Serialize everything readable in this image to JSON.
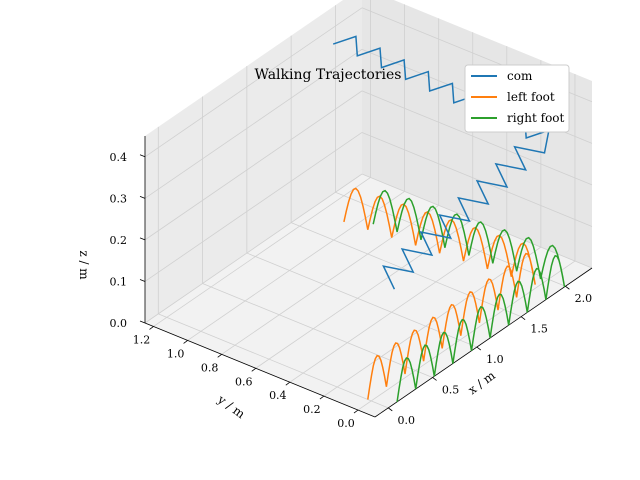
{
  "chart_data": {
    "type": "line",
    "projection": "3d",
    "title": "Walking Trajectories",
    "xlabel": "x / m",
    "ylabel": "y / m",
    "zlabel": "z / m",
    "xlim": [
      -0.15,
      2.3
    ],
    "ylim": [
      -0.1,
      1.25
    ],
    "zlim": [
      0,
      0.45
    ],
    "xticks": [
      "0.0",
      "0.5",
      "1.0",
      "1.5",
      "2.0"
    ],
    "yticks": [
      "0.0",
      "0.2",
      "0.4",
      "0.6",
      "0.8",
      "1.0",
      "1.2"
    ],
    "zticks": [
      "0.0",
      "0.1",
      "0.2",
      "0.3",
      "0.4"
    ],
    "grid": true,
    "legend_position": "top-right",
    "series": [
      {
        "name": "com",
        "color": "#1f77b4"
      },
      {
        "name": "left foot",
        "color": "#ff7f0e"
      },
      {
        "name": "right foot",
        "color": "#2ca02c"
      }
    ]
  }
}
